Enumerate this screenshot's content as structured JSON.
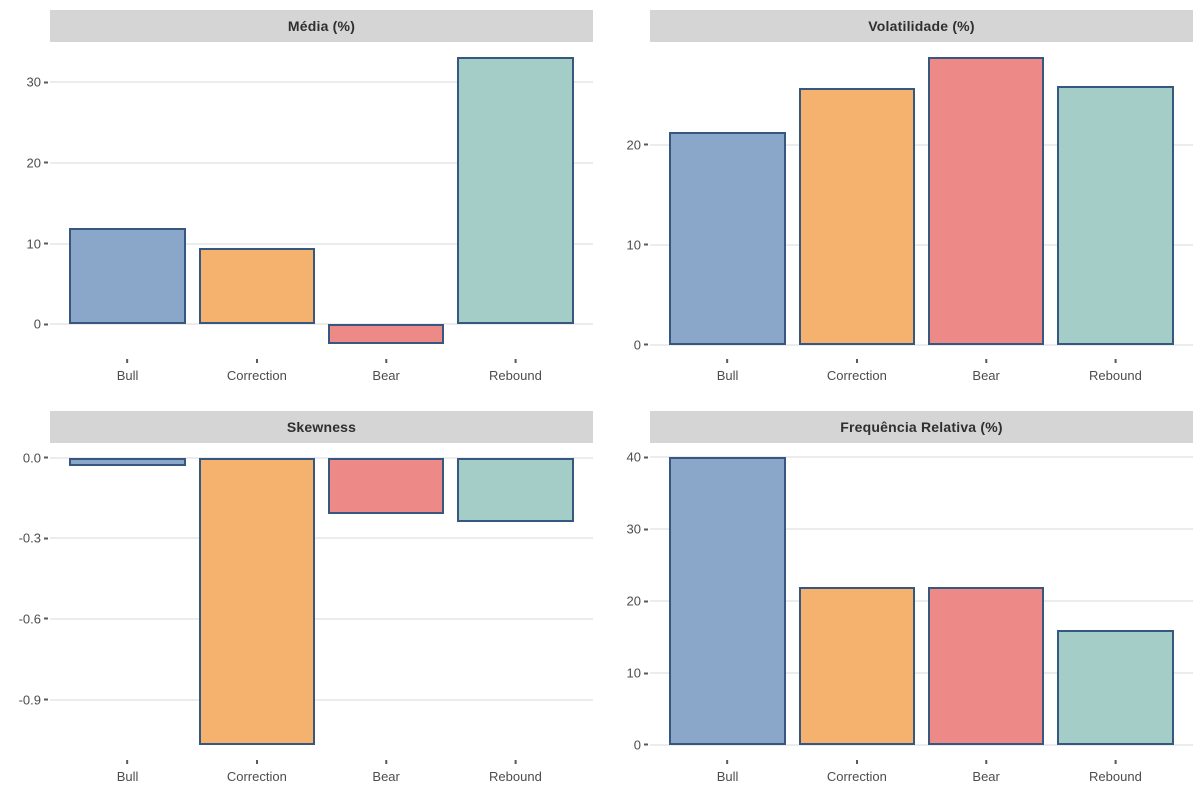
{
  "style": {
    "bar_fills": [
      "#8AA6C8",
      "#F5B26E",
      "#ED8A87",
      "#A5CDC8"
    ],
    "bar_stroke": "#36577F",
    "strip_bg": "#D5D5D5",
    "strip_text_color": "#2F2F2F",
    "gridline_color": "#ECECEC",
    "axis_text_color": "#4D4D4D",
    "background": "#FFFFFF"
  },
  "chart_data": [
    {
      "type": "bar",
      "title": "Média (%)",
      "categories": [
        "Bull",
        "Correction",
        "Bear",
        "Rebound"
      ],
      "values": [
        12.0,
        9.4,
        -2.5,
        33.2
      ],
      "ylim": [
        -4.3,
        35.0
      ],
      "yticks": [
        0,
        10,
        20,
        30
      ],
      "ytick_labels": [
        "0",
        "10",
        "20",
        "30"
      ],
      "xlabel": "",
      "ylabel": "",
      "grid": "major-horizontal",
      "legend": "none"
    },
    {
      "type": "bar",
      "title": "Volatilidade (%)",
      "categories": [
        "Bull",
        "Correction",
        "Bear",
        "Rebound"
      ],
      "values": [
        21.3,
        25.7,
        28.8,
        25.9
      ],
      "ylim": [
        -1.45,
        30.25
      ],
      "yticks": [
        0,
        10,
        20
      ],
      "ytick_labels": [
        "0",
        "10",
        "20"
      ],
      "xlabel": "",
      "ylabel": "",
      "grid": "major-horizontal",
      "legend": "none"
    },
    {
      "type": "bar",
      "title": "Skewness",
      "categories": [
        "Bull",
        "Correction",
        "Bear",
        "Rebound"
      ],
      "values": [
        -0.03,
        -1.07,
        -0.21,
        -0.24
      ],
      "ylim": [
        -1.125,
        0.055
      ],
      "yticks": [
        0,
        -0.3,
        -0.6,
        -0.9
      ],
      "ytick_labels": [
        "0.0",
        "-0.3",
        "-0.6",
        "-0.9"
      ],
      "xlabel": "",
      "ylabel": "",
      "grid": "major-horizontal",
      "legend": "none"
    },
    {
      "type": "bar",
      "title": "Frequência Relativa (%)",
      "categories": [
        "Bull",
        "Correction",
        "Bear",
        "Rebound"
      ],
      "values": [
        40,
        22,
        22,
        16
      ],
      "ylim": [
        -2.1,
        42.0
      ],
      "yticks": [
        0,
        10,
        20,
        30,
        40
      ],
      "ytick_labels": [
        "0",
        "10",
        "20",
        "30",
        "40"
      ],
      "xlabel": "",
      "ylabel": "",
      "grid": "major-horizontal",
      "legend": "none"
    }
  ]
}
